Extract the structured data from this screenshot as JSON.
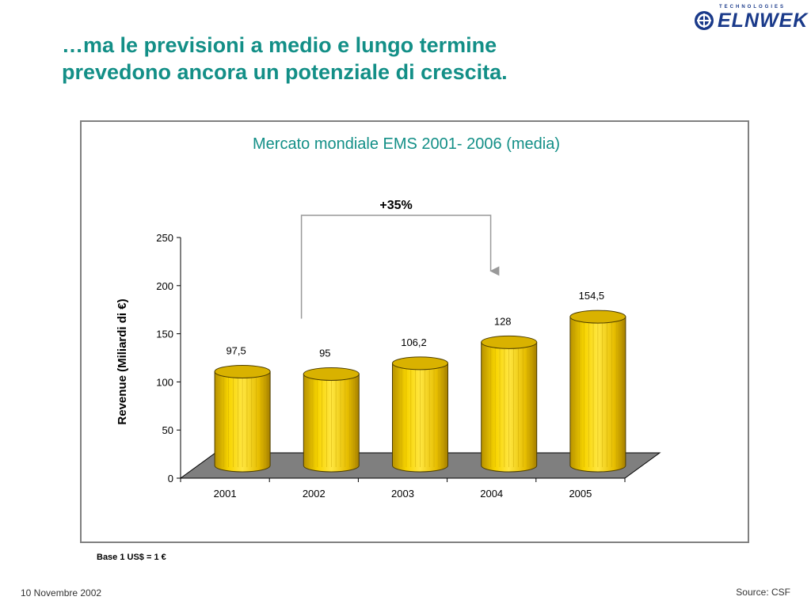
{
  "slide": {
    "title_line1": "…ma le previsioni a medio e lungo termine",
    "title_line2": "prevedono ancora un potenziale di crescita.",
    "footnote": "Base 1 US$ = 1 €",
    "date": "10 Novembre 2002",
    "source": "Source: CSF"
  },
  "logo": {
    "tagline": "TECHNOLOGIES",
    "wordmark": "ELNWEK",
    "color": "#1a3a8a"
  },
  "chart_data": {
    "type": "bar",
    "style": "3d-cylinder",
    "title": "Mercato mondiale EMS 2001- 2006 (media)",
    "ylabel": "Revenue (Miliardi di €)",
    "xlabel": "",
    "categories": [
      "2001",
      "2002",
      "2003",
      "2004",
      "2005"
    ],
    "values": [
      97.5,
      95,
      106.2,
      128,
      154.5
    ],
    "data_labels": [
      "97,5",
      "95",
      "106,2",
      "128",
      "154,5"
    ],
    "ylim": [
      0,
      250
    ],
    "yticks": [
      0,
      50,
      100,
      150,
      200,
      250
    ],
    "grid": false,
    "legend": "none",
    "bar_color": "#f5d000",
    "title_color": "#138f87",
    "annotation": {
      "text": "+35%",
      "from_category": "2002",
      "to_category": "2004"
    }
  }
}
